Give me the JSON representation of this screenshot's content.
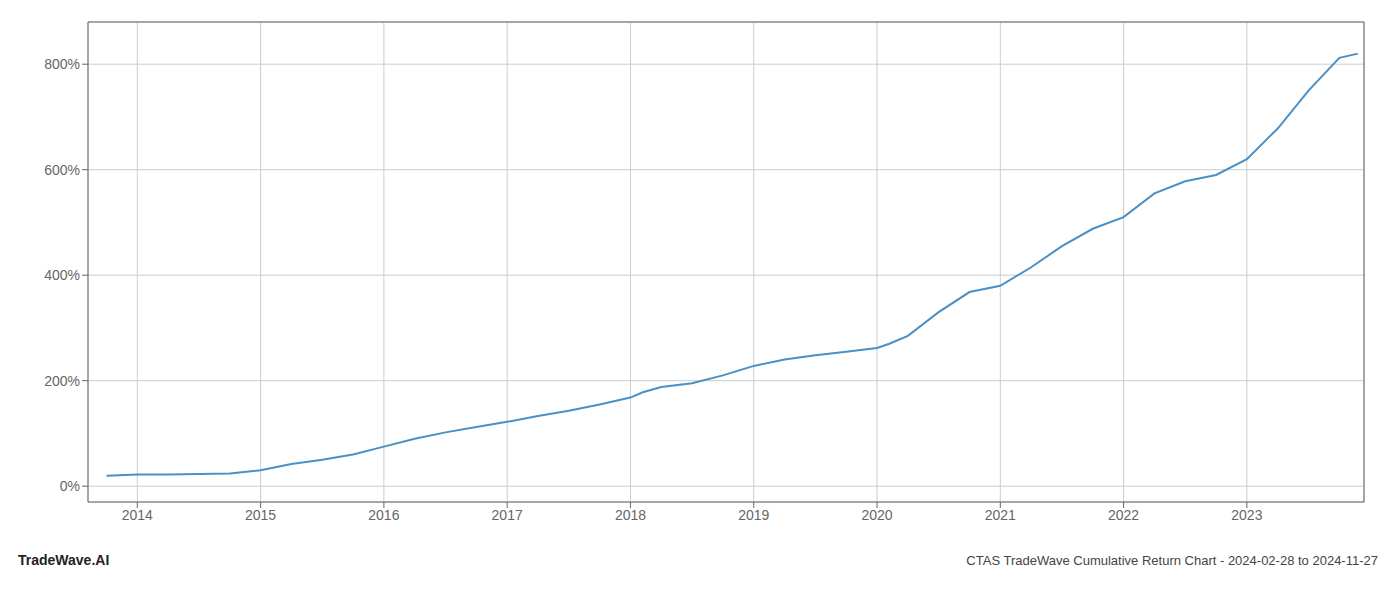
{
  "chart_data": {
    "type": "line",
    "title": "CTAS TradeWave Cumulative Return Chart - 2024-02-28 to 2024-11-27",
    "annotations": [
      "TradeWave.AI"
    ],
    "x": [
      2013.75,
      2014.0,
      2014.25,
      2014.5,
      2014.75,
      2015.0,
      2015.25,
      2015.5,
      2015.75,
      2016.0,
      2016.25,
      2016.5,
      2016.75,
      2017.0,
      2017.25,
      2017.5,
      2017.75,
      2018.0,
      2018.1,
      2018.25,
      2018.5,
      2018.75,
      2019.0,
      2019.25,
      2019.5,
      2019.75,
      2020.0,
      2020.1,
      2020.25,
      2020.5,
      2020.75,
      2021.0,
      2021.25,
      2021.5,
      2021.75,
      2022.0,
      2022.25,
      2022.5,
      2022.75,
      2023.0,
      2023.25,
      2023.5,
      2023.75,
      2023.9
    ],
    "values": [
      20,
      22,
      22,
      23,
      24,
      30,
      42,
      50,
      60,
      75,
      90,
      102,
      112,
      122,
      133,
      143,
      155,
      168,
      178,
      188,
      195,
      210,
      228,
      240,
      248,
      255,
      262,
      270,
      285,
      330,
      368,
      380,
      415,
      455,
      488,
      510,
      555,
      578,
      590,
      620,
      678,
      750,
      812,
      820
    ],
    "color": "#4a90c4",
    "xlim": [
      2013.6,
      2023.95
    ],
    "ylim": [
      -30,
      880
    ],
    "xticks": [
      2014,
      2015,
      2016,
      2017,
      2018,
      2019,
      2020,
      2021,
      2022,
      2023
    ],
    "yticks": [
      {
        "value": 0,
        "label": "0%"
      },
      {
        "value": 200,
        "label": "200%"
      },
      {
        "value": 400,
        "label": "400%"
      },
      {
        "value": 600,
        "label": "600%"
      },
      {
        "value": 800,
        "label": "800%"
      }
    ],
    "grid": true
  }
}
